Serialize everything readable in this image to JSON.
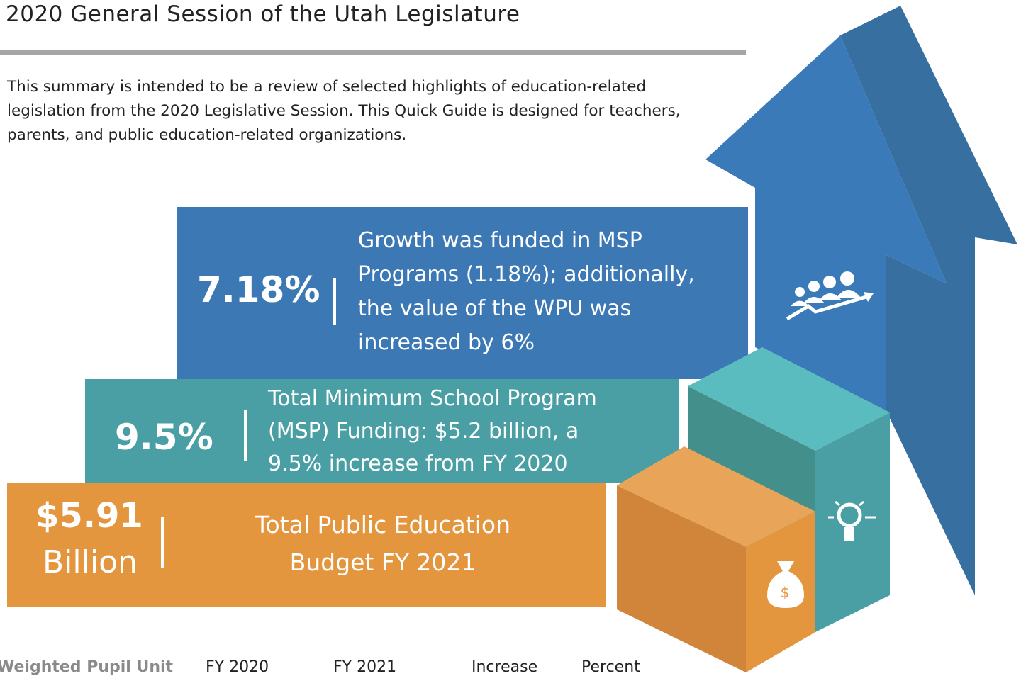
{
  "header": {
    "title": "2020 General Session of the Utah Legislature"
  },
  "intro": "This summary is intended to be a review of selected highlights of education-related legislation from the 2020 Legislative Session.  This Quick Guide is designed for teachers, parents, and public education-related organizations.",
  "highlights": [
    {
      "stat": "7.18%",
      "description": "Growth was funded in MSP Programs (1.18%); additionally, the value of the WPU was increased by 6%"
    },
    {
      "stat": "9.5%",
      "description": "Total Minimum School Program (MSP) Funding: $5.2 billion, a 9.5% increase from FY 2020"
    },
    {
      "stat": "$5.91",
      "stat_unit": "Billion",
      "description": "Total Public Education Budget FY 2021"
    }
  ],
  "table": {
    "header": [
      "Weighted Pupil Unit",
      "FY 2020",
      "FY 2021",
      "Increase",
      "Percent"
    ]
  }
}
